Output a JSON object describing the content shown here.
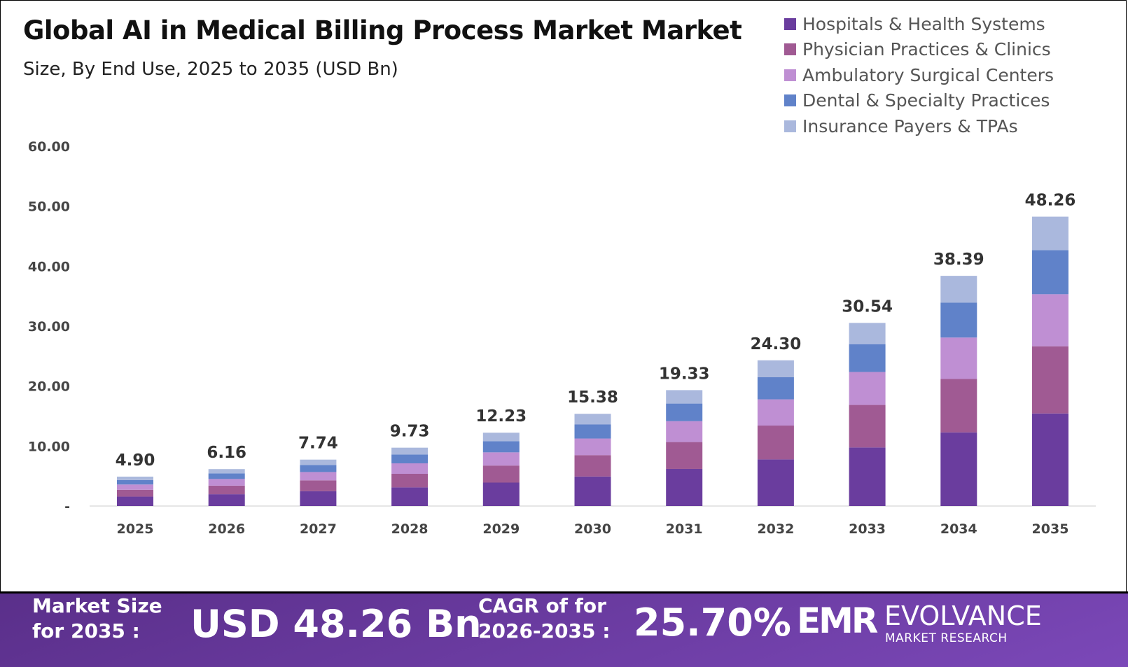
{
  "chart_data": {
    "type": "bar",
    "stacked": true,
    "title": "Global AI in Medical Billing Process Market  Market",
    "subtitle": "Size, By End Use, 2025 to 2035 (USD Bn)",
    "categories": [
      "2025",
      "2026",
      "2027",
      "2028",
      "2029",
      "2030",
      "2031",
      "2032",
      "2033",
      "2034",
      "2035"
    ],
    "totals": [
      "4.90",
      "6.16",
      "7.74",
      "9.73",
      "12.23",
      "15.38",
      "19.33",
      "24.30",
      "30.54",
      "38.39",
      "48.26"
    ],
    "series": [
      {
        "name": "Hospitals & Health Systems",
        "color": "#6a3d9e",
        "values": [
          1.57,
          1.97,
          2.48,
          3.11,
          3.91,
          4.92,
          6.19,
          7.78,
          9.77,
          12.28,
          15.44
        ]
      },
      {
        "name": "Physician Practices & Clinics",
        "color": "#a05a93",
        "values": [
          1.14,
          1.43,
          1.8,
          2.26,
          2.84,
          3.57,
          4.48,
          5.64,
          7.09,
          8.91,
          11.2
        ]
      },
      {
        "name": "Ambulatory Surgical Centers",
        "color": "#bf8fd3",
        "values": [
          0.88,
          1.11,
          1.39,
          1.75,
          2.2,
          2.77,
          3.48,
          4.37,
          5.5,
          6.91,
          8.69
        ]
      },
      {
        "name": "Dental & Specialty Practices",
        "color": "#6082c9",
        "values": [
          0.74,
          0.94,
          1.18,
          1.48,
          1.86,
          2.34,
          2.94,
          3.69,
          4.64,
          5.84,
          7.34
        ]
      },
      {
        "name": "Insurance Payers & TPAs",
        "color": "#aab8dd",
        "values": [
          0.57,
          0.71,
          0.89,
          1.13,
          1.42,
          1.78,
          2.24,
          2.82,
          3.54,
          4.45,
          5.59
        ]
      }
    ],
    "yticks": [
      "-",
      "10.00",
      "20.00",
      "30.00",
      "40.00",
      "50.00",
      "60.00"
    ],
    "ylim": [
      0,
      60
    ],
    "grid": false,
    "legend_position": "top-right"
  },
  "footer": {
    "market_size_label_1": "Market Size",
    "market_size_label_2": "for 2035 :",
    "market_size_value": "USD 48.26 Bn",
    "cagr_label_1": "CAGR of for",
    "cagr_label_2": "2026-2035 :",
    "cagr_value": "25.70%",
    "logo_mark": "EMR",
    "logo_name": "EVOLVANCE",
    "logo_tagline": "MARKET RESEARCH"
  }
}
